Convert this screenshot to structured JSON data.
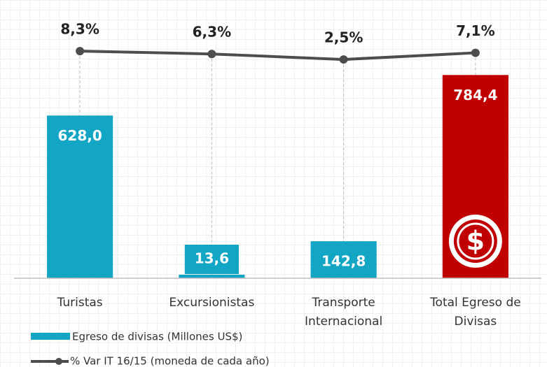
{
  "chart_data": {
    "type": "bar",
    "categories": [
      "Turistas",
      "Excursionistas",
      "Transporte Internacional",
      "Total Egreso de Divisas"
    ],
    "series": [
      {
        "name": "Egreso de divisas (Millones US$)",
        "color": "#12a5c4",
        "colors": [
          "#12a5c4",
          "#12a5c4",
          "#12a5c4",
          "#c00000"
        ],
        "values": [
          628.0,
          13.6,
          142.8,
          784.4
        ],
        "value_labels": [
          "628,0",
          "13,6",
          "142,8",
          "784,4"
        ]
      },
      {
        "name": "% Var IT 16/15 (moneda de cada año)",
        "type": "line",
        "axis": "y2",
        "color": "#4d4d4d",
        "values": [
          8.3,
          6.3,
          2.5,
          7.1
        ],
        "value_labels": [
          "8,3%",
          "6,3%",
          "2,5%",
          "7,1%"
        ]
      }
    ],
    "ylim": [
      0,
      1020
    ],
    "y2lim": [
      -149,
      34
    ],
    "legend": "bottom-left"
  }
}
